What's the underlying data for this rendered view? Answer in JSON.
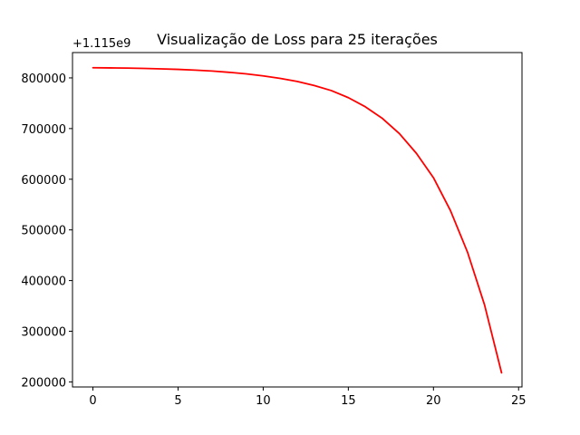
{
  "chart_data": {
    "type": "line",
    "title": "Visualização de Loss para 25 iterações",
    "y_offset_label": "+1.115e9",
    "xlabel": "",
    "ylabel": "",
    "xlim": [
      -1.2,
      25.2
    ],
    "ylim": [
      190000,
      850000
    ],
    "x_ticks": [
      0,
      5,
      10,
      15,
      20,
      25
    ],
    "x_tick_labels": [
      "0",
      "5",
      "10",
      "15",
      "20",
      "25"
    ],
    "y_ticks": [
      200000,
      300000,
      400000,
      500000,
      600000,
      700000,
      800000
    ],
    "y_tick_labels": [
      "200000",
      "300000",
      "400000",
      "500000",
      "600000",
      "700000",
      "800000"
    ],
    "grid": false,
    "legend": "none",
    "series": [
      {
        "color": "#ff0000",
        "x": [
          0,
          1,
          2,
          3,
          4,
          5,
          6,
          7,
          8,
          9,
          10,
          11,
          12,
          13,
          14,
          15,
          16,
          17,
          18,
          19,
          20,
          21,
          22,
          23,
          24
        ],
        "y": [
          820000,
          819700,
          819300,
          818700,
          817800,
          816800,
          815300,
          813500,
          811000,
          808000,
          804000,
          799000,
          793000,
          785000,
          775000,
          761000,
          743000,
          720000,
          690000,
          651000,
          603000,
          538000,
          456000,
          352000,
          218000
        ]
      }
    ]
  }
}
